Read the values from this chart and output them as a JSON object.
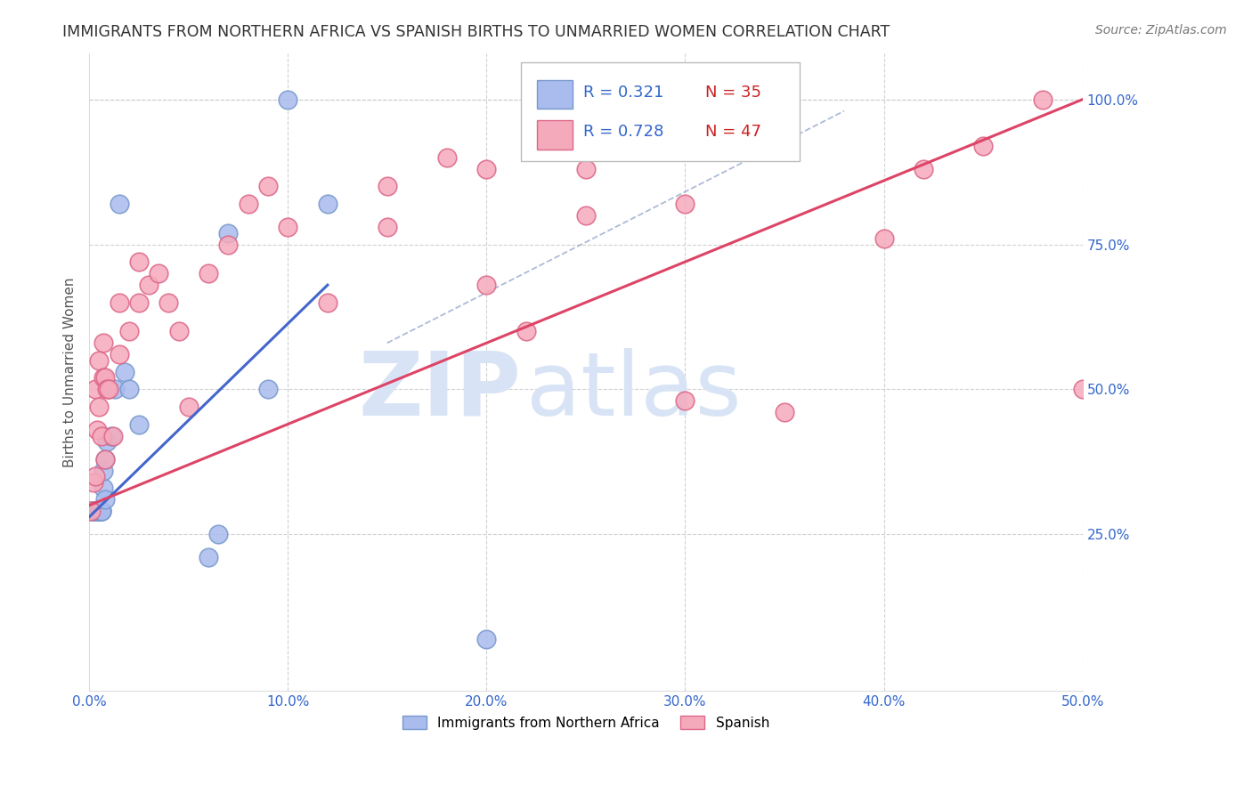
{
  "title": "IMMIGRANTS FROM NORTHERN AFRICA VS SPANISH BIRTHS TO UNMARRIED WOMEN CORRELATION CHART",
  "source": "Source: ZipAtlas.com",
  "ylabel_left": "Births to Unmarried Women",
  "legend_label_blue": "Immigrants from Northern Africa",
  "legend_label_pink": "Spanish",
  "legend_r_blue": "R = 0.321",
  "legend_n_blue": "N = 35",
  "legend_r_pink": "R = 0.728",
  "legend_n_pink": "N = 47",
  "xlim": [
    0.0,
    0.5
  ],
  "ylim": [
    -0.02,
    1.08
  ],
  "xticks": [
    0.0,
    0.1,
    0.2,
    0.3,
    0.4,
    0.5
  ],
  "yticks_right": [
    0.25,
    0.5,
    0.75,
    1.0
  ],
  "ytick_labels_right": [
    "25.0%",
    "50.0%",
    "75.0%",
    "100.0%"
  ],
  "xtick_labels": [
    "0.0%",
    "10.0%",
    "20.0%",
    "30.0%",
    "40.0%",
    "50.0%"
  ],
  "grid_color": "#cccccc",
  "blue_fill": "#aabbee",
  "pink_fill": "#f5aabc",
  "blue_edge": "#7799cc",
  "pink_edge": "#dd6688",
  "blue_line_color": "#4466cc",
  "pink_line_color": "#dd4466",
  "diag_color": "#99aacc",
  "watermark_zip": "ZIP",
  "watermark_atlas": "atlas",
  "watermark_color": "#d8e4f5",
  "blue_scatter_x": [
    0.001,
    0.002,
    0.002,
    0.003,
    0.003,
    0.003,
    0.003,
    0.004,
    0.004,
    0.004,
    0.005,
    0.005,
    0.005,
    0.006,
    0.006,
    0.006,
    0.007,
    0.007,
    0.008,
    0.008,
    0.009,
    0.01,
    0.011,
    0.013,
    0.015,
    0.018,
    0.02,
    0.025,
    0.06,
    0.065,
    0.07,
    0.09,
    0.1,
    0.12,
    0.2
  ],
  "blue_scatter_y": [
    0.29,
    0.29,
    0.29,
    0.29,
    0.29,
    0.29,
    0.29,
    0.29,
    0.29,
    0.29,
    0.29,
    0.29,
    0.29,
    0.29,
    0.29,
    0.29,
    0.33,
    0.36,
    0.31,
    0.38,
    0.41,
    0.5,
    0.42,
    0.5,
    0.82,
    0.53,
    0.5,
    0.44,
    0.21,
    0.25,
    0.77,
    0.5,
    1.0,
    0.82,
    0.07
  ],
  "pink_scatter_x": [
    0.001,
    0.002,
    0.003,
    0.003,
    0.004,
    0.005,
    0.005,
    0.006,
    0.007,
    0.007,
    0.008,
    0.008,
    0.009,
    0.01,
    0.012,
    0.015,
    0.015,
    0.02,
    0.025,
    0.025,
    0.03,
    0.035,
    0.04,
    0.045,
    0.05,
    0.06,
    0.07,
    0.08,
    0.09,
    0.1,
    0.12,
    0.15,
    0.18,
    0.2,
    0.22,
    0.25,
    0.3,
    0.35,
    0.4,
    0.42,
    0.45,
    0.48,
    0.5,
    0.15,
    0.2,
    0.25,
    0.3
  ],
  "pink_scatter_y": [
    0.29,
    0.34,
    0.35,
    0.5,
    0.43,
    0.47,
    0.55,
    0.42,
    0.52,
    0.58,
    0.38,
    0.52,
    0.5,
    0.5,
    0.42,
    0.56,
    0.65,
    0.6,
    0.65,
    0.72,
    0.68,
    0.7,
    0.65,
    0.6,
    0.47,
    0.7,
    0.75,
    0.82,
    0.85,
    0.78,
    0.65,
    0.85,
    0.9,
    0.88,
    0.6,
    0.8,
    0.48,
    0.46,
    0.76,
    0.88,
    0.92,
    1.0,
    0.5,
    0.78,
    0.68,
    0.88,
    0.82
  ],
  "figsize": [
    14.06,
    8.92
  ],
  "dpi": 100
}
